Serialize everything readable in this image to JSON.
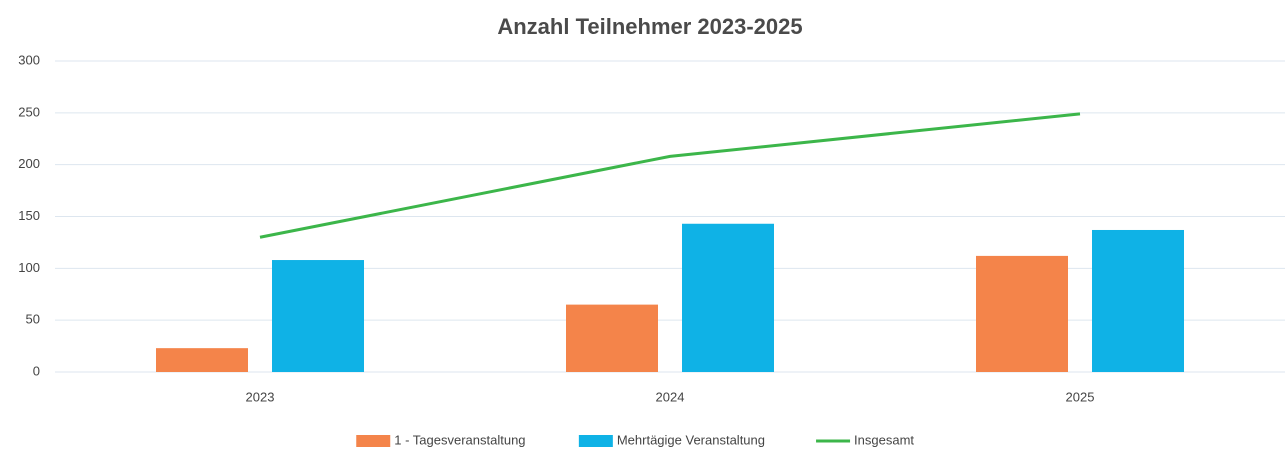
{
  "chart_data": {
    "type": "bar",
    "title": "Anzahl Teilnehmer 2023-2025",
    "categories": [
      "2023",
      "2024",
      "2025"
    ],
    "series": [
      {
        "name": "1 - Tagesveranstaltung",
        "type": "bar",
        "color": "#f4844a",
        "values": [
          23,
          65,
          112
        ]
      },
      {
        "name": "Mehrtägige Veranstaltung",
        "type": "bar",
        "color": "#0fb2e6",
        "values": [
          108,
          143,
          137
        ]
      },
      {
        "name": "Insgesamt",
        "type": "line",
        "color": "#3cb64a",
        "values": [
          130,
          208,
          249
        ]
      }
    ],
    "ylim": [
      0,
      300
    ],
    "yticks": [
      0,
      50,
      100,
      150,
      200,
      250,
      300
    ],
    "grid": true,
    "legend": "bottom"
  }
}
